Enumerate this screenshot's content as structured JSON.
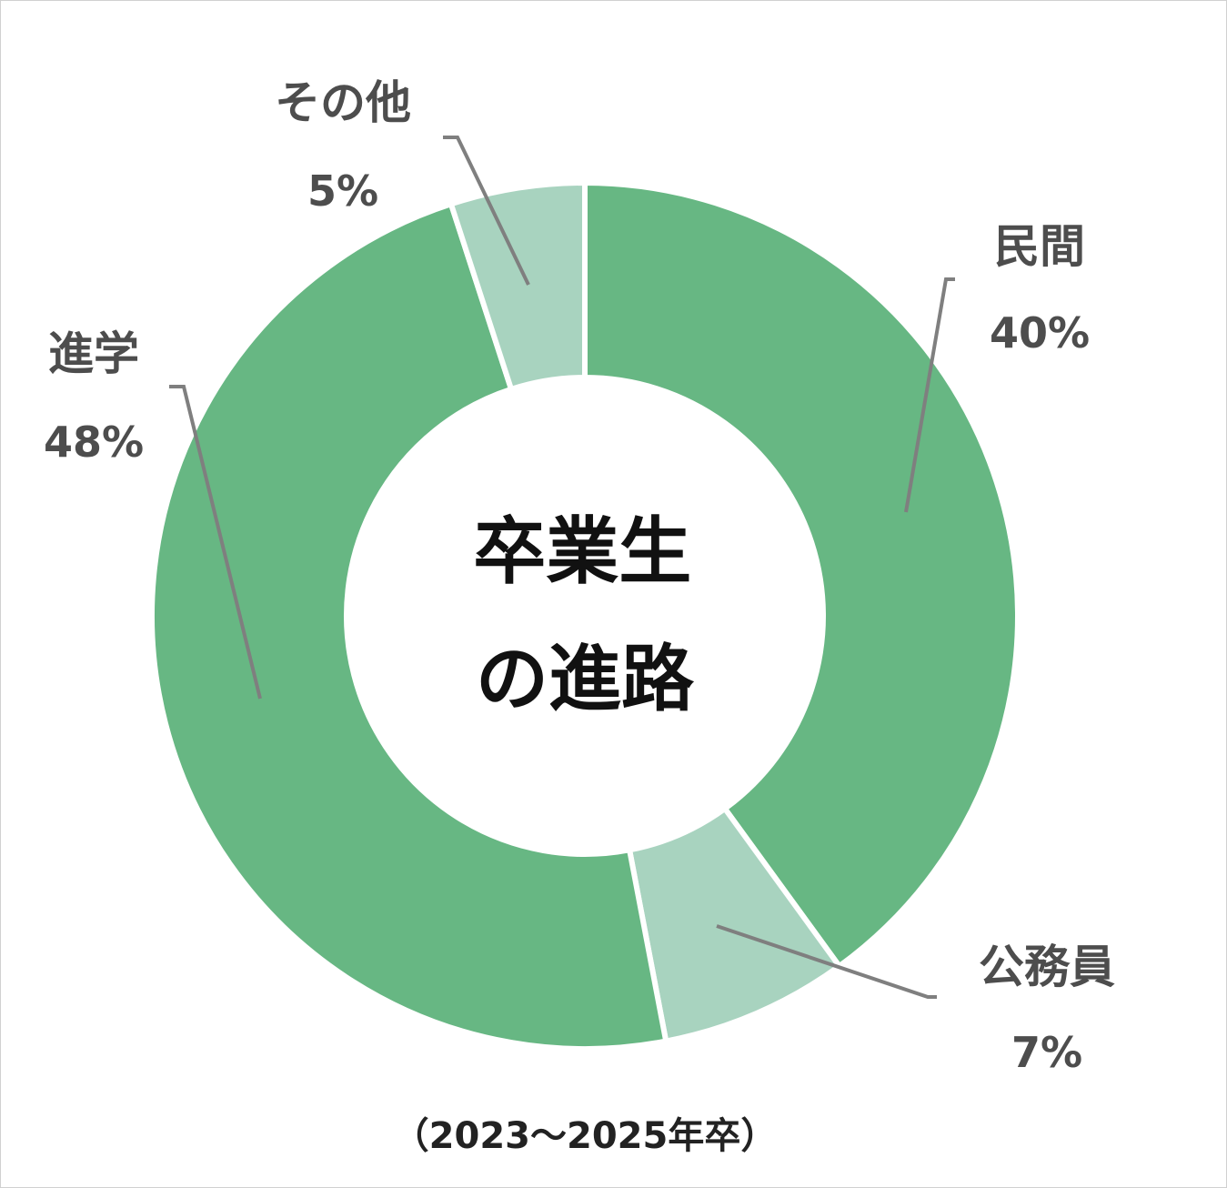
{
  "chart_data": {
    "type": "pie",
    "title": "卒業生\nの進路",
    "caption": "（2023～2025年卒）",
    "slices": [
      {
        "label": "民間",
        "value": 40,
        "display": "40%",
        "color": "#67b783"
      },
      {
        "label": "公務員",
        "value": 7,
        "display": "7%",
        "color": "#a8d3bf"
      },
      {
        "label": "進学",
        "value": 48,
        "display": "48%",
        "color": "#67b783"
      },
      {
        "label": "その他",
        "value": 5,
        "display": "5%",
        "color": "#a8d3bf"
      }
    ],
    "leader_line_color": "#7f7f7f",
    "label_color": "#4d4d4d"
  }
}
